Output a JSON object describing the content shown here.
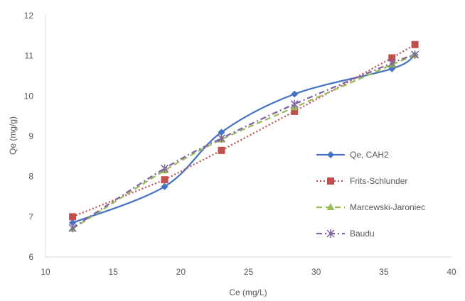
{
  "chart_data": {
    "type": "line",
    "title": "",
    "xlabel": "Ce (mg/L)",
    "ylabel": "Qe (mg/g)",
    "xlim": [
      10,
      40
    ],
    "ylim": [
      6,
      12
    ],
    "xticks": [
      "10",
      "15",
      "20",
      "25",
      "30",
      "35",
      "40"
    ],
    "yticks": [
      "6",
      "7",
      "8",
      "9",
      "10",
      "11",
      "12"
    ],
    "grid": false,
    "legend_position": "right",
    "series": [
      {
        "name": "Qe, CAH2",
        "color": "#4472C4",
        "line_style": "solid",
        "smooth": true,
        "marker": "diamond",
        "x": [
          12,
          18.8,
          23,
          28.4,
          35.6,
          37.3
        ],
        "y": [
          6.85,
          7.75,
          9.1,
          10.05,
          10.68,
          11.02
        ]
      },
      {
        "name": "Frits-Schlunder",
        "color": "#C0504D",
        "line_style": "dotted",
        "smooth": false,
        "marker": "square",
        "x": [
          12,
          18.8,
          23,
          28.4,
          35.6,
          37.3
        ],
        "y": [
          7.0,
          7.92,
          8.65,
          9.62,
          10.95,
          11.28
        ]
      },
      {
        "name": "Marcewski-Jaroniec",
        "color": "#9BBB59",
        "line_style": "dashed",
        "smooth": true,
        "marker": "triangle",
        "x": [
          12,
          18.8,
          23,
          28.4,
          35.6,
          37.3
        ],
        "y": [
          6.7,
          8.15,
          8.92,
          9.72,
          10.78,
          11.02
        ]
      },
      {
        "name": "Baudu",
        "color": "#8064A2",
        "line_style": "dashdot",
        "smooth": true,
        "marker": "asterisk",
        "x": [
          12,
          18.8,
          23,
          28.4,
          35.6,
          37.3
        ],
        "y": [
          6.72,
          8.2,
          8.95,
          9.8,
          10.82,
          11.03
        ]
      }
    ]
  }
}
